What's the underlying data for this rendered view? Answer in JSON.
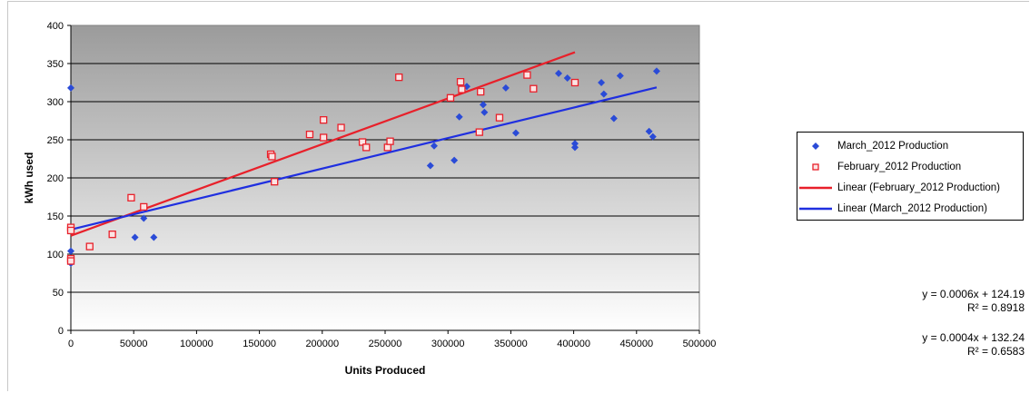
{
  "chart_data": {
    "type": "scatter",
    "xlabel": "Units Produced",
    "ylabel": "kWh used",
    "xlim": [
      0,
      500000
    ],
    "ylim": [
      0,
      400
    ],
    "x_ticks": [
      0,
      50000,
      100000,
      150000,
      200000,
      250000,
      300000,
      350000,
      400000,
      450000,
      500000
    ],
    "y_ticks": [
      0,
      50,
      100,
      150,
      200,
      250,
      300,
      350,
      400
    ],
    "grid": "horizontal",
    "legend_position": "right",
    "series": [
      {
        "name": "March_2012 Production",
        "marker": "diamond",
        "color": "#2a4bd7",
        "points": [
          [
            0,
            318
          ],
          [
            0,
            104
          ],
          [
            0,
            90
          ],
          [
            0,
            88
          ],
          [
            51000,
            122
          ],
          [
            58000,
            147
          ],
          [
            66000,
            122
          ],
          [
            286000,
            216
          ],
          [
            289000,
            242
          ],
          [
            305000,
            223
          ],
          [
            309000,
            280
          ],
          [
            315000,
            320
          ],
          [
            328000,
            296
          ],
          [
            329000,
            286
          ],
          [
            346000,
            318
          ],
          [
            354000,
            259
          ],
          [
            388000,
            337
          ],
          [
            395000,
            331
          ],
          [
            401000,
            245
          ],
          [
            401000,
            240
          ],
          [
            422000,
            325
          ],
          [
            424000,
            310
          ],
          [
            432000,
            278
          ],
          [
            437000,
            334
          ],
          [
            460000,
            261
          ],
          [
            463000,
            254
          ],
          [
            466000,
            340
          ]
        ]
      },
      {
        "name": "February_2012 Production",
        "marker": "square",
        "color": "#e8202a",
        "points": [
          [
            0,
            135
          ],
          [
            0,
            131
          ],
          [
            0,
            94
          ],
          [
            0,
            91
          ],
          [
            15000,
            110
          ],
          [
            33000,
            126
          ],
          [
            48000,
            174
          ],
          [
            58000,
            162
          ],
          [
            159000,
            231
          ],
          [
            160000,
            228
          ],
          [
            162000,
            195
          ],
          [
            190000,
            257
          ],
          [
            201000,
            276
          ],
          [
            201000,
            253
          ],
          [
            215000,
            266
          ],
          [
            232000,
            247
          ],
          [
            235000,
            240
          ],
          [
            252000,
            240
          ],
          [
            254000,
            248
          ],
          [
            261000,
            332
          ],
          [
            302000,
            305
          ],
          [
            310000,
            326
          ],
          [
            311000,
            316
          ],
          [
            325000,
            260
          ],
          [
            326000,
            313
          ],
          [
            341000,
            279
          ],
          [
            363000,
            335
          ],
          [
            368000,
            317
          ],
          [
            401000,
            325
          ]
        ]
      }
    ],
    "trendlines": [
      {
        "name": "Linear (February_2012 Production)",
        "color": "#e8202a",
        "slope": 0.0006,
        "intercept": 124.19,
        "x_range": [
          0,
          401000
        ]
      },
      {
        "name": "Linear (March_2012 Production)",
        "color": "#1f2fe0",
        "slope": 0.0004,
        "intercept": 132.24,
        "x_range": [
          0,
          466000
        ]
      }
    ],
    "legend": [
      "March_2012 Production",
      "February_2012 Production",
      "Linear (February_2012 Production)",
      "Linear (March_2012 Production)"
    ],
    "annotations": {
      "feb_equation": "y = 0.0006x + 124.19",
      "feb_r2": "R² = 0.8918",
      "mar_equation": "y = 0.0004x + 132.24",
      "mar_r2": "R² = 0.6583"
    }
  }
}
